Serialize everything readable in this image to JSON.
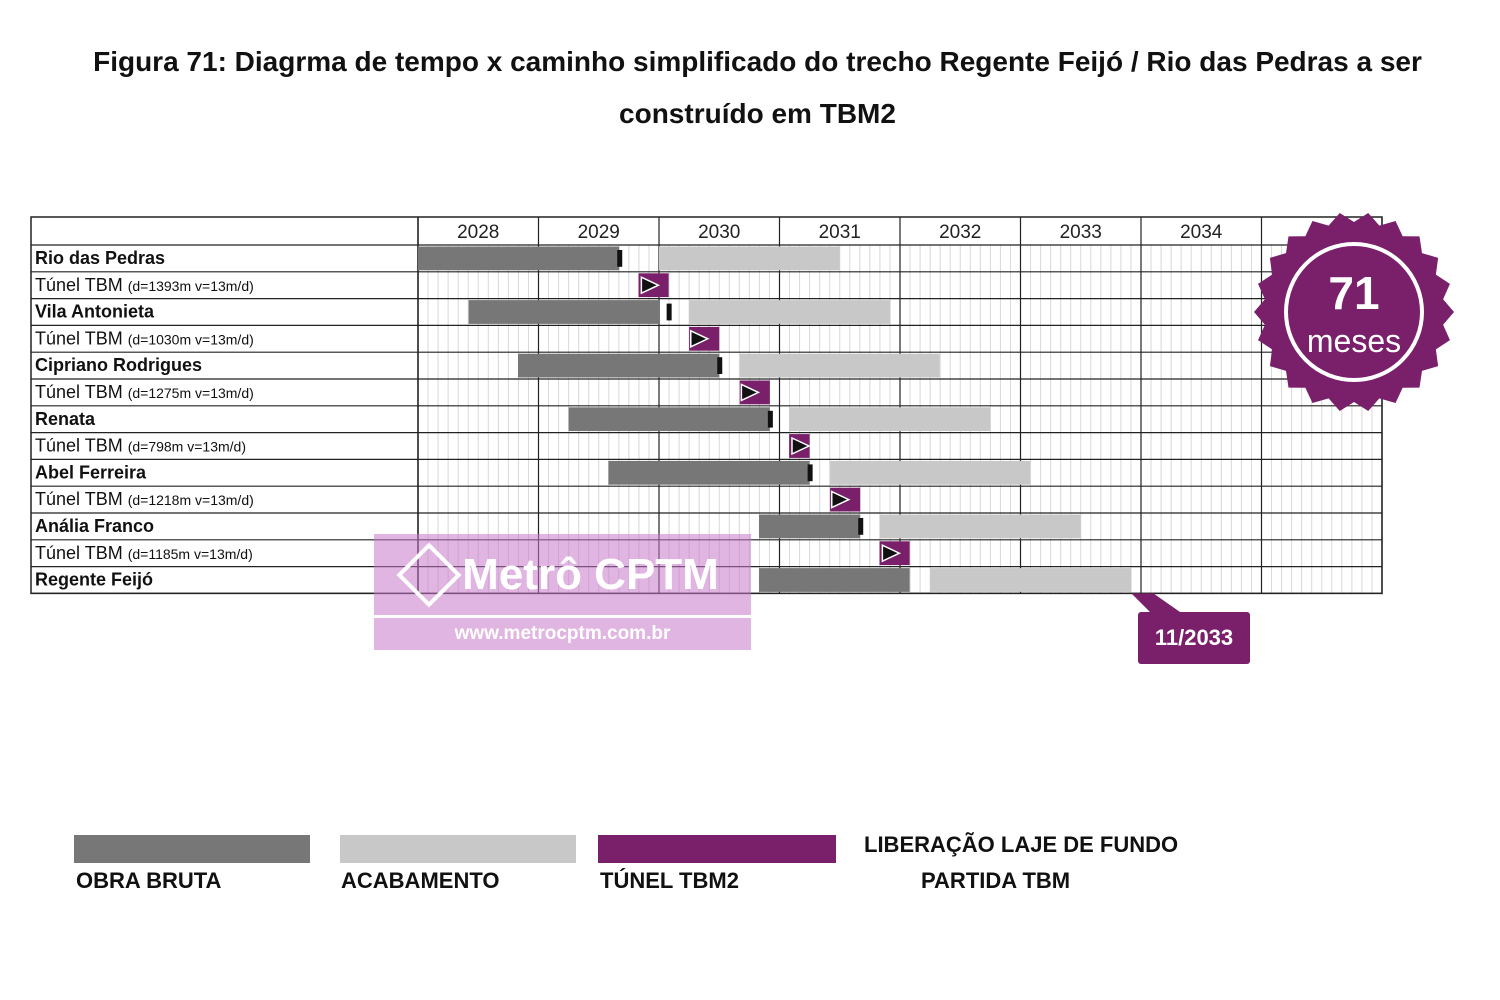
{
  "title_line1": "Figura 71: Diagrma de tempo x caminho simplificado do trecho Regente Feijó / Rio das Pedras a ser",
  "title_line2": "construído em TBM2",
  "chart_data": {
    "type": "gantt",
    "time_unit": "year (fractional)",
    "x_range": [
      2027.5,
      2035.5
    ],
    "years": [
      "2028",
      "2029",
      "2030",
      "2031",
      "2032",
      "2033",
      "2034"
    ],
    "rows": [
      {
        "label": "Rio das Pedras",
        "kind": "station",
        "obra_bruta": [
          2027.5,
          2029.17
        ],
        "laje": 2029.17,
        "acabamento": [
          2029.5,
          2031.0
        ]
      },
      {
        "label": "Túnel TBM",
        "detail": "(d=1393m v=13m/d)",
        "kind": "tunnel",
        "tunel": [
          2029.33,
          2029.58
        ],
        "partida": 2029.42
      },
      {
        "label": "Vila Antonieta",
        "kind": "station",
        "obra_bruta": [
          2027.92,
          2029.5
        ],
        "laje": 2029.58,
        "acabamento": [
          2029.75,
          2031.42
        ]
      },
      {
        "label": "Túnel TBM",
        "detail": "(d=1030m v=13m/d)",
        "kind": "tunnel",
        "tunel": [
          2029.75,
          2030.0
        ],
        "partida": 2029.83
      },
      {
        "label": "Cipriano Rodrigues",
        "kind": "station",
        "obra_bruta": [
          2028.33,
          2030.0
        ],
        "laje": 2030.0,
        "acabamento": [
          2030.17,
          2031.83
        ]
      },
      {
        "label": "Túnel TBM",
        "detail": "(d=1275m v=13m/d)",
        "kind": "tunnel",
        "tunel": [
          2030.17,
          2030.42
        ],
        "partida": 2030.25
      },
      {
        "label": "Renata",
        "kind": "station",
        "obra_bruta": [
          2028.75,
          2030.42
        ],
        "laje": 2030.42,
        "acabamento": [
          2030.58,
          2032.25
        ]
      },
      {
        "label": "Túnel TBM",
        "detail": "(d=798m v=13m/d)",
        "kind": "tunnel",
        "tunel": [
          2030.58,
          2030.75
        ],
        "partida": 2030.67
      },
      {
        "label": "Abel Ferreira",
        "kind": "station",
        "obra_bruta": [
          2029.08,
          2030.75
        ],
        "laje": 2030.75,
        "acabamento": [
          2030.92,
          2032.58
        ]
      },
      {
        "label": "Túnel TBM",
        "detail": "(d=1218m v=13m/d)",
        "kind": "tunnel",
        "tunel": [
          2030.92,
          2031.17
        ],
        "partida": 2031.0
      },
      {
        "label": "Anália Franco",
        "kind": "station",
        "obra_bruta": [
          2030.33,
          2031.17
        ],
        "laje": 2031.17,
        "acabamento": [
          2031.33,
          2033.0
        ]
      },
      {
        "label": "Túnel TBM",
        "detail": "(d=1185m v=13m/d)",
        "kind": "tunnel",
        "tunel": [
          2031.33,
          2031.58
        ],
        "partida": 2031.42
      },
      {
        "label": "Regente Feijó",
        "kind": "station",
        "obra_bruta": [
          2030.33,
          2031.58
        ],
        "laje": null,
        "acabamento": [
          2031.75,
          2033.42
        ]
      }
    ],
    "legend": [
      {
        "key": "obra_bruta",
        "label": "OBRA BRUTA",
        "color": "#777777"
      },
      {
        "key": "acabamento",
        "label": "ACABAMENTO",
        "color": "#c8c8c8"
      },
      {
        "key": "tunel",
        "label": "TÚNEL TBM2",
        "color": "#7a1f6a"
      },
      {
        "key": "laje",
        "label": "LIBERAÇÃO LAJE DE FUNDO",
        "color": "#111111"
      },
      {
        "key": "partida",
        "label": "PARTIDA TBM",
        "color": "#111111"
      }
    ],
    "badge": {
      "value": "71",
      "unit": "meses",
      "color": "#7a1f6a"
    },
    "end_callout": "11/2033"
  },
  "watermark": {
    "name": "Metrô CPTM",
    "url": "www.metrocptm.com.br"
  }
}
